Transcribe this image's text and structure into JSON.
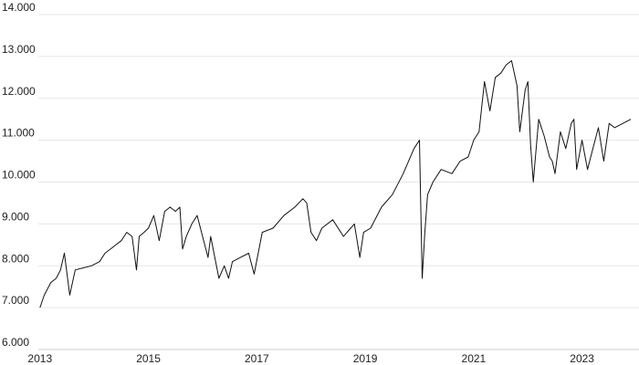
{
  "chart_data": {
    "type": "line",
    "title": "",
    "xlabel": "",
    "ylabel": "",
    "grid": true,
    "legend": "none",
    "xlim": [
      2012.97,
      2024.05
    ],
    "ylim": [
      6000,
      14000
    ],
    "y_ticks": [
      {
        "value": 6000,
        "label": "6.000"
      },
      {
        "value": 7000,
        "label": "7.000"
      },
      {
        "value": 8000,
        "label": "8.000"
      },
      {
        "value": 9000,
        "label": "9.000"
      },
      {
        "value": 10000,
        "label": "10.000"
      },
      {
        "value": 11000,
        "label": "11.000"
      },
      {
        "value": 12000,
        "label": "12.000"
      },
      {
        "value": 13000,
        "label": "13.000"
      },
      {
        "value": 14000,
        "label": "14.000"
      }
    ],
    "x_ticks": [
      {
        "value": 2013,
        "label": "2013"
      },
      {
        "value": 2015,
        "label": "2015"
      },
      {
        "value": 2017,
        "label": "2017"
      },
      {
        "value": 2019,
        "label": "2019"
      },
      {
        "value": 2021,
        "label": "2021"
      },
      {
        "value": 2023,
        "label": "2023"
      }
    ],
    "colors": {
      "line": "#111111",
      "grid": "#e6e6e6",
      "text": "#222222"
    },
    "series": [
      {
        "x": [
          2013.0,
          2013.08,
          2013.2,
          2013.3,
          2013.38,
          2013.45,
          2013.55,
          2013.65,
          2013.8,
          2013.95,
          2014.1,
          2014.2,
          2014.35,
          2014.5,
          2014.6,
          2014.7,
          2014.78,
          2014.83,
          2014.92,
          2015.0,
          2015.1,
          2015.2,
          2015.3,
          2015.4,
          2015.5,
          2015.58,
          2015.63,
          2015.7,
          2015.8,
          2015.9,
          2016.0,
          2016.1,
          2016.15,
          2016.3,
          2016.4,
          2016.48,
          2016.55,
          2016.7,
          2016.85,
          2016.95,
          2017.1,
          2017.3,
          2017.5,
          2017.7,
          2017.85,
          2017.92,
          2018.0,
          2018.1,
          2018.2,
          2018.4,
          2018.6,
          2018.8,
          2018.9,
          2018.97,
          2019.1,
          2019.3,
          2019.5,
          2019.7,
          2019.9,
          2020.0,
          2020.05,
          2020.1,
          2020.15,
          2020.25,
          2020.4,
          2020.6,
          2020.75,
          2020.9,
          2021.0,
          2021.1,
          2021.2,
          2021.3,
          2021.4,
          2021.5,
          2021.6,
          2021.7,
          2021.8,
          2021.85,
          2021.95,
          2022.0,
          2022.05,
          2022.1,
          2022.2,
          2022.3,
          2022.4,
          2022.45,
          2022.5,
          2022.6,
          2022.7,
          2022.8,
          2022.85,
          2022.9,
          2023.0,
          2023.1,
          2023.2,
          2023.3,
          2023.4,
          2023.5,
          2023.6,
          2023.75,
          2023.9
        ],
        "y": [
          7000,
          7300,
          7600,
          7700,
          7900,
          8300,
          7300,
          7900,
          7950,
          8000,
          8100,
          8300,
          8450,
          8600,
          8800,
          8700,
          7900,
          8700,
          8800,
          8900,
          9200,
          8600,
          9300,
          9400,
          9300,
          9400,
          8400,
          8700,
          9000,
          9200,
          8700,
          8200,
          8700,
          7700,
          8000,
          7700,
          8100,
          8200,
          8300,
          7800,
          8800,
          8900,
          9200,
          9400,
          9600,
          9500,
          8800,
          8600,
          8900,
          9100,
          8700,
          9000,
          8200,
          8800,
          8900,
          9400,
          9700,
          10200,
          10800,
          11000,
          7700,
          8800,
          9700,
          10000,
          10300,
          10200,
          10500,
          10600,
          11000,
          11200,
          12400,
          11700,
          12500,
          12600,
          12800,
          12900,
          12300,
          11200,
          12200,
          12400,
          10900,
          10000,
          11500,
          11100,
          10600,
          10500,
          10200,
          11200,
          10800,
          11400,
          11500,
          10300,
          11000,
          10300,
          10800,
          11300,
          10500,
          11400,
          11300,
          11400,
          11500
        ]
      }
    ]
  }
}
